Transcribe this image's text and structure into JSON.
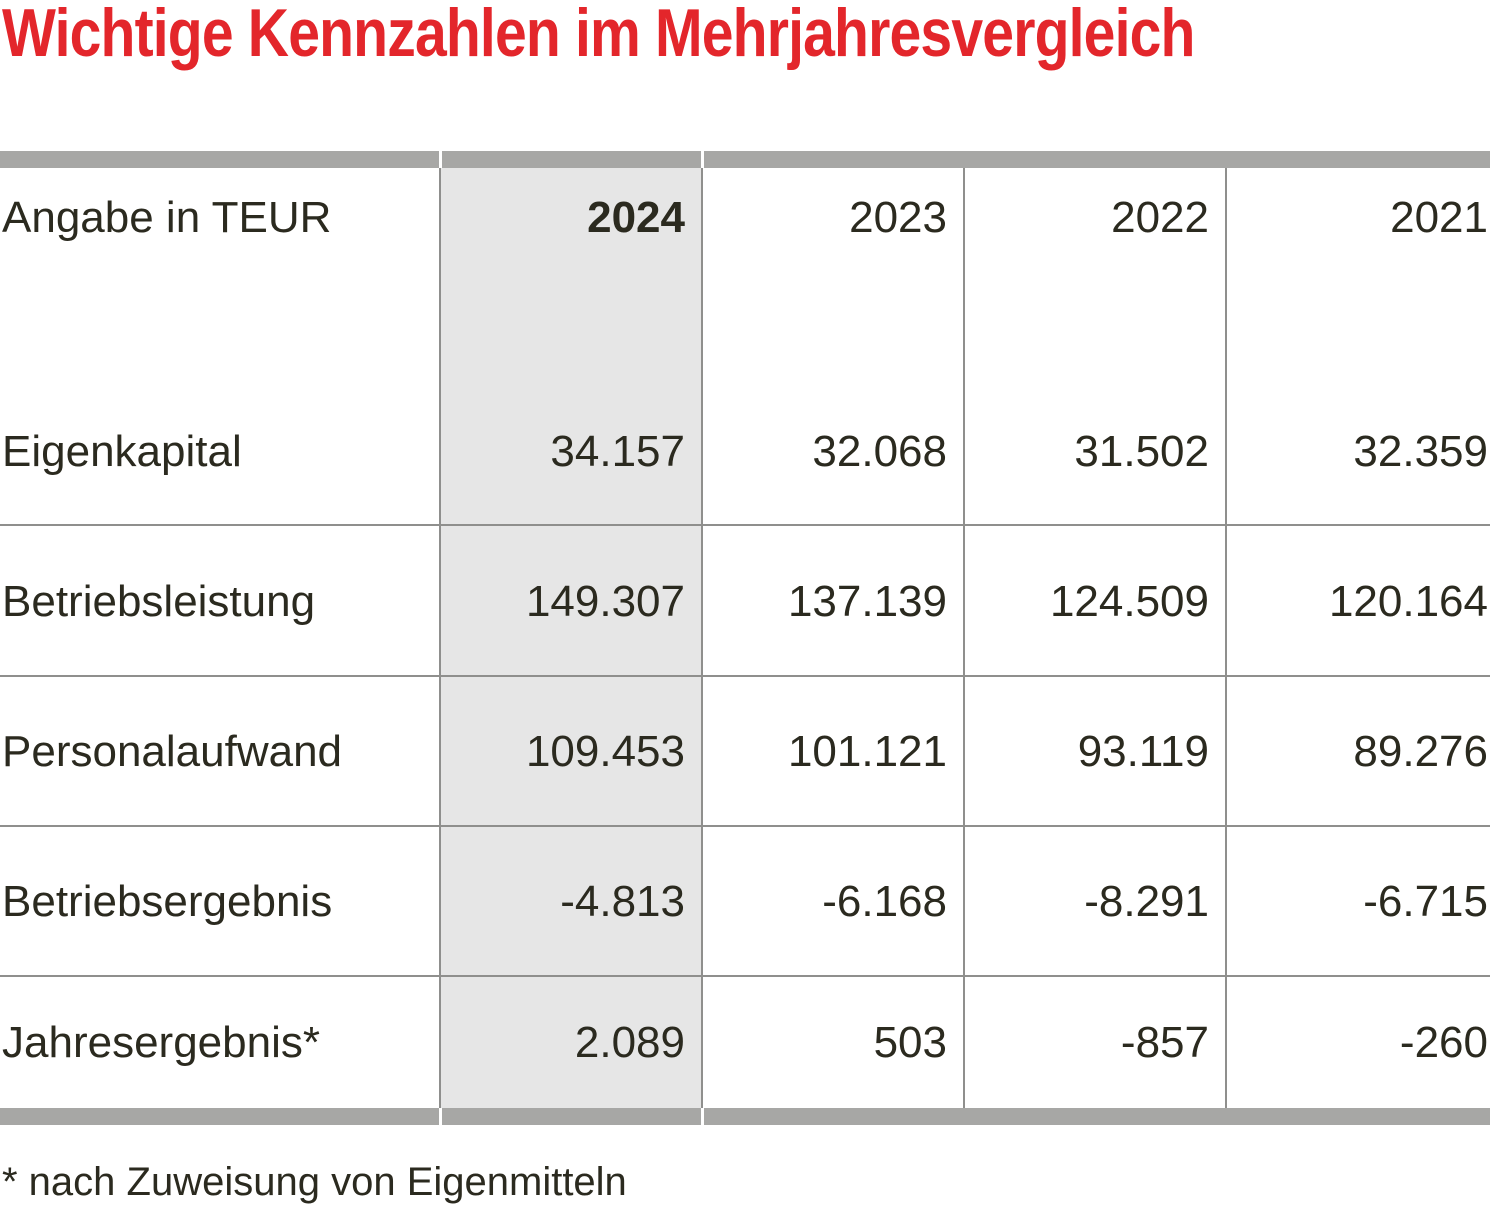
{
  "title": "Wichtige Kennzahlen im Mehrjahresvergleich",
  "colors": {
    "title": "#e3262b",
    "rule": "#a7a7a5",
    "highlight_column": "#e6e6e6",
    "text": "#2b2a1f"
  },
  "table": {
    "header": {
      "label": "Angabe in TEUR",
      "years": [
        "2024",
        "2023",
        "2022",
        "2021"
      ]
    },
    "highlight_year": "2024",
    "rows": [
      {
        "label": "Eigenkapital",
        "values": [
          "34.157",
          "32.068",
          "31.502",
          "32.359"
        ]
      },
      {
        "label": "Betriebsleistung",
        "values": [
          "149.307",
          "137.139",
          "124.509",
          "120.164"
        ]
      },
      {
        "label": "Personalaufwand",
        "values": [
          "109.453",
          "101.121",
          "93.119",
          "89.276"
        ]
      },
      {
        "label": "Betriebsergebnis",
        "values": [
          "-4.813",
          "-6.168",
          "-8.291",
          "-6.715"
        ]
      },
      {
        "label": "Jahresergebnis*",
        "values": [
          "2.089",
          "503",
          "-857",
          "-260"
        ]
      }
    ]
  },
  "footnote": "* nach Zuweisung von Eigenmitteln"
}
